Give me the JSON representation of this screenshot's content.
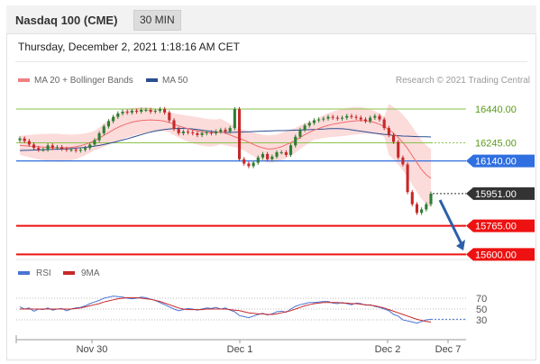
{
  "header": {
    "title": "Nasdaq 100 (CME)",
    "timeframe": "30 MIN"
  },
  "timestamp": "Thursday, December 2, 2021 1:18:16 AM CET",
  "legend": {
    "ma20": "MA 20 + Bollinger Bands",
    "ma50": "MA 50",
    "rsi": "RSI",
    "ma9": "9MA"
  },
  "copyright": "Research © 2021 Trading Central",
  "colors": {
    "ma20": "#f06b6b",
    "ma50": "#2a4e8f",
    "band": "#fbd2d2",
    "support": "#ee1111",
    "pivot": "#2f6fe0",
    "resistance": "#8ac24a",
    "last": "#333333",
    "rsi": "#4a73d6",
    "bull": "#2e7d32",
    "bear": "#c62828",
    "arrow": "#2b5fa8"
  },
  "chart_data": {
    "type": "candlestick",
    "ylim": [
      15560,
      16560
    ],
    "x_ticks": [
      "Nov 30",
      "Dec 1",
      "Dec 2",
      "Dec 7"
    ],
    "levels": [
      {
        "name": "resistance-2",
        "value": 16440,
        "label": "16440.00",
        "kind": "resistance"
      },
      {
        "name": "resistance-1",
        "value": 16245,
        "label": "16245.00",
        "kind": "resistance"
      },
      {
        "name": "pivot",
        "value": 16140,
        "label": "16140.00",
        "kind": "pivot"
      },
      {
        "name": "last-price",
        "value": 15951,
        "label": "15951.00",
        "kind": "last"
      },
      {
        "name": "support-1",
        "value": 15765,
        "label": "15765.00",
        "kind": "support"
      },
      {
        "name": "support-2",
        "value": 15600,
        "label": "15600.00",
        "kind": "support"
      }
    ],
    "close": [
      16270,
      16255,
      16235,
      16215,
      16205,
      16205,
      16230,
      16215,
      16220,
      16210,
      16205,
      16205,
      16200,
      16205,
      16215,
      16235,
      16260,
      16300,
      16340,
      16370,
      16395,
      16415,
      16425,
      16420,
      16430,
      16425,
      16435,
      16435,
      16425,
      16430,
      16440,
      16420,
      16375,
      16325,
      16300,
      16310,
      16305,
      16300,
      16290,
      16300,
      16305,
      16300,
      16310,
      16320,
      16310,
      16330,
      16440,
      16150,
      16125,
      16110,
      16130,
      16160,
      16180,
      16150,
      16165,
      16190,
      16190,
      16175,
      16230,
      16280,
      16320,
      16345,
      16360,
      16375,
      16380,
      16385,
      16395,
      16390,
      16385,
      16390,
      16400,
      16395,
      16390,
      16380,
      16370,
      16390,
      16400,
      16380,
      16330,
      16290,
      16250,
      16160,
      16120,
      15960,
      15890,
      15840,
      15860,
      15890,
      15951
    ],
    "ma20": [
      16230,
      16228,
      16226,
      16224,
      16222,
      16220,
      16219,
      16218,
      16217,
      16216,
      16216,
      16218,
      16222,
      16228,
      16236,
      16246,
      16258,
      16272,
      16288,
      16304,
      16320,
      16334,
      16346,
      16356,
      16364,
      16370,
      16374,
      16376,
      16377,
      16376,
      16374,
      16370,
      16362,
      16352,
      16342,
      16334,
      16326,
      16320,
      16314,
      16308,
      16304,
      16302,
      16304,
      16310,
      16300,
      16290,
      16280,
      16270,
      16260,
      16248,
      16236,
      16224,
      16216,
      16210,
      16210,
      16214,
      16222,
      16234,
      16246,
      16260,
      16276,
      16292,
      16306,
      16318,
      16328,
      16338,
      16346,
      16352,
      16357,
      16362,
      16366,
      16370,
      16372,
      16374,
      16372,
      16368,
      16362,
      16352,
      16338,
      16322,
      16300,
      16276,
      16246,
      16212,
      16170,
      16130,
      16090,
      16060,
      16040
    ],
    "ma50": [
      16200,
      16201,
      16202,
      16203,
      16204,
      16205,
      16206,
      16207,
      16208,
      16209,
      16210,
      16212,
      16214,
      16216,
      16219,
      16222,
      16226,
      16230,
      16235,
      16241,
      16247,
      16254,
      16261,
      16268,
      16276,
      16284,
      16292,
      16300,
      16307,
      16313,
      16318,
      16322,
      16325,
      16327,
      16328,
      16328,
      16327,
      16325,
      16322,
      16318,
      16314,
      16311,
      16308,
      16306,
      16305,
      16305,
      16306,
      16307,
      16308,
      16309,
      16310,
      16311,
      16312,
      16313,
      16314,
      16315,
      16315,
      16316,
      16317,
      16318,
      16319,
      16320,
      16321,
      16322,
      16323,
      16324,
      16326,
      16327,
      16327,
      16326,
      16324,
      16320,
      16316,
      16312,
      16308,
      16304,
      16300,
      16297,
      16294,
      16291,
      16288,
      16286,
      16284,
      16283,
      16282,
      16281,
      16280,
      16280,
      16279
    ],
    "rsi": {
      "ylim": [
        0,
        100
      ],
      "ticks": [
        "70",
        "50",
        "30"
      ],
      "rsi": [
        54,
        50,
        52,
        46,
        50,
        49,
        52,
        48,
        50,
        51,
        47,
        50,
        52,
        53,
        56,
        60,
        63,
        66,
        70,
        72,
        74,
        73,
        72,
        70,
        69,
        70,
        72,
        71,
        68,
        66,
        62,
        58,
        54,
        50,
        47,
        49,
        51,
        50,
        48,
        50,
        52,
        51,
        53,
        50,
        52,
        48,
        45,
        38,
        36,
        34,
        37,
        40,
        42,
        39,
        41,
        45,
        46,
        44,
        50,
        55,
        58,
        60,
        62,
        62,
        63,
        64,
        64,
        61,
        60,
        62,
        60,
        58,
        61,
        60,
        57,
        58,
        55,
        53,
        50,
        47,
        40,
        37,
        30,
        28,
        26,
        24,
        27,
        30,
        31
      ],
      "ma9": [
        50,
        50,
        50,
        50,
        50,
        50,
        50,
        50,
        50,
        50,
        50,
        50,
        51,
        52,
        54,
        56,
        58,
        60,
        63,
        65,
        67,
        69,
        70,
        71,
        71,
        71,
        70,
        69,
        68,
        66,
        64,
        61,
        58,
        55,
        52,
        50,
        49,
        49,
        49,
        49,
        50,
        50,
        50,
        50,
        50,
        49,
        48,
        47,
        45,
        43,
        42,
        41,
        41,
        40,
        40,
        41,
        43,
        45,
        47,
        50,
        53,
        56,
        58,
        60,
        61,
        62,
        62,
        62,
        62,
        61,
        61,
        60,
        60,
        59,
        58,
        57,
        56,
        54,
        52,
        49,
        46,
        43,
        40,
        37,
        34,
        31,
        29,
        27,
        26
      ]
    }
  }
}
